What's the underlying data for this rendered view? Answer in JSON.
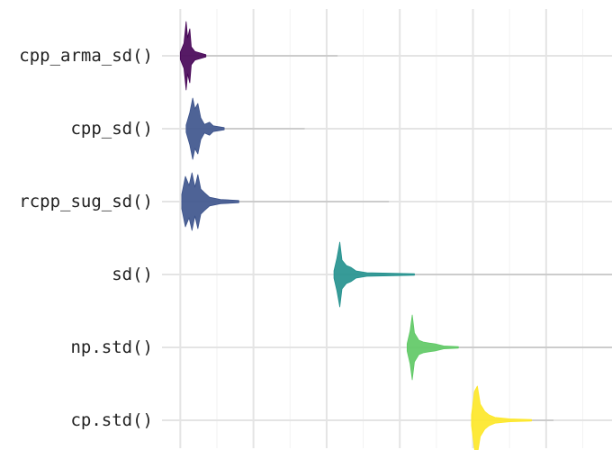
{
  "chart_data": {
    "type": "violin",
    "title": "",
    "xlabel": "",
    "ylabel": "",
    "categories": [
      "cpp_arma_sd()",
      "cpp_sd()",
      "rcpp_sug_sd()",
      "sd()",
      "np.std()",
      "cp.std()"
    ],
    "x_range": [
      -0.25,
      5.9
    ],
    "grid": true,
    "legend": "none",
    "series": [
      {
        "category": "cpp_arma_sd()",
        "color": "#440154",
        "tail_end": 2.15,
        "density": [
          [
            0.0,
            0.1
          ],
          [
            0.05,
            0.35
          ],
          [
            0.08,
            0.95
          ],
          [
            0.1,
            0.5
          ],
          [
            0.13,
            0.75
          ],
          [
            0.15,
            0.25
          ],
          [
            0.2,
            0.12
          ],
          [
            0.35,
            0.03
          ]
        ]
      },
      {
        "category": "cpp_sd()",
        "color": "#3b528b",
        "tail_end": 1.7,
        "density": [
          [
            0.08,
            0.1
          ],
          [
            0.13,
            0.45
          ],
          [
            0.17,
            0.85
          ],
          [
            0.2,
            0.55
          ],
          [
            0.24,
            0.7
          ],
          [
            0.28,
            0.3
          ],
          [
            0.33,
            0.12
          ],
          [
            0.4,
            0.18
          ],
          [
            0.45,
            0.08
          ],
          [
            0.6,
            0.03
          ]
        ]
      },
      {
        "category": "rcpp_sug_sd()",
        "color": "#3b528b",
        "tail_end": 2.85,
        "density": [
          [
            0.02,
            0.2
          ],
          [
            0.07,
            0.7
          ],
          [
            0.12,
            0.45
          ],
          [
            0.16,
            0.8
          ],
          [
            0.2,
            0.4
          ],
          [
            0.24,
            0.75
          ],
          [
            0.28,
            0.35
          ],
          [
            0.33,
            0.25
          ],
          [
            0.4,
            0.12
          ],
          [
            0.55,
            0.06
          ],
          [
            0.8,
            0.03
          ]
        ]
      },
      {
        "category": "sd()",
        "color": "#21908d",
        "tail_end": 5.9,
        "density": [
          [
            2.1,
            0.1
          ],
          [
            2.14,
            0.45
          ],
          [
            2.18,
            0.9
          ],
          [
            2.21,
            0.4
          ],
          [
            2.27,
            0.25
          ],
          [
            2.33,
            0.2
          ],
          [
            2.4,
            0.1
          ],
          [
            2.55,
            0.05
          ],
          [
            3.2,
            0.02
          ]
        ]
      },
      {
        "category": "np.std()",
        "color": "#5dc863",
        "tail_end": 5.9,
        "density": [
          [
            3.1,
            0.1
          ],
          [
            3.14,
            0.45
          ],
          [
            3.17,
            0.9
          ],
          [
            3.2,
            0.4
          ],
          [
            3.26,
            0.2
          ],
          [
            3.32,
            0.15
          ],
          [
            3.4,
            0.12
          ],
          [
            3.48,
            0.1
          ],
          [
            3.6,
            0.04
          ],
          [
            3.8,
            0.02
          ]
        ]
      },
      {
        "category": "cp.std()",
        "color": "#fde725",
        "tail_end": 5.1,
        "density": [
          [
            3.98,
            0.15
          ],
          [
            4.02,
            0.8
          ],
          [
            4.06,
            0.95
          ],
          [
            4.1,
            0.45
          ],
          [
            4.16,
            0.25
          ],
          [
            4.22,
            0.15
          ],
          [
            4.3,
            0.08
          ],
          [
            4.5,
            0.04
          ],
          [
            4.8,
            0.02
          ]
        ]
      }
    ]
  }
}
